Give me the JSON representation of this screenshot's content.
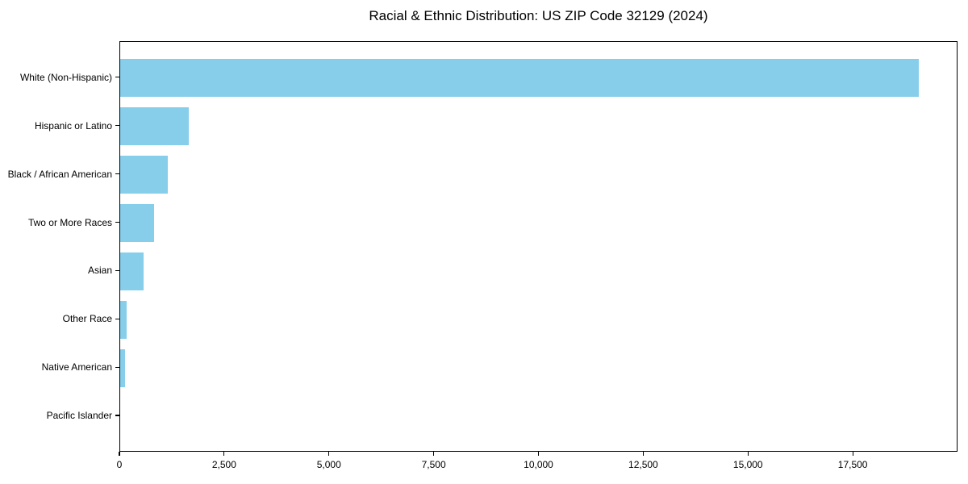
{
  "title": "Racial & Ethnic Distribution: US ZIP Code 32129 (2024)",
  "chart_data": {
    "type": "bar",
    "orientation": "horizontal",
    "title": "Racial & Ethnic Distribution: US ZIP Code 32129 (2024)",
    "categories": [
      "White (Non-Hispanic)",
      "Hispanic or Latino",
      "Black / African American",
      "Two or More Races",
      "Asian",
      "Other Race",
      "Native American",
      "Pacific Islander"
    ],
    "values": [
      19063,
      1628,
      1132,
      812,
      554,
      148,
      112,
      0
    ],
    "xlabel": "",
    "ylabel": "",
    "xlim": [
      0,
      20000
    ],
    "x_ticks": [
      0,
      2500,
      5000,
      7500,
      10000,
      12500,
      15000,
      17500
    ],
    "x_tick_labels": [
      "0",
      "2,500",
      "5,000",
      "7,500",
      "10,000",
      "12,500",
      "15,000",
      "17,500"
    ],
    "bar_color": "#87CEEB",
    "background_color": "#ffffff",
    "axis_color": "#000000",
    "grid": false,
    "legend": null
  }
}
